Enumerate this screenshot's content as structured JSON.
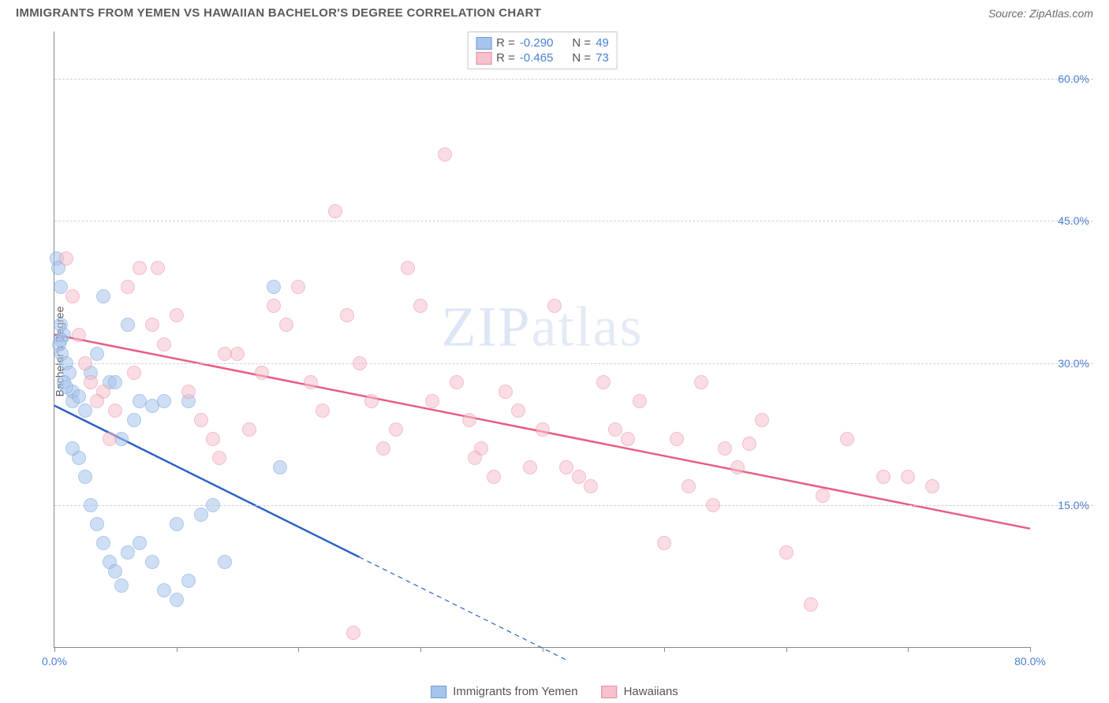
{
  "header": {
    "title": "IMMIGRANTS FROM YEMEN VS HAWAIIAN BACHELOR'S DEGREE CORRELATION CHART",
    "source": "Source: ZipAtlas.com"
  },
  "watermark": {
    "part1": "ZIP",
    "part2": "atlas"
  },
  "chart": {
    "type": "scatter",
    "ylabel": "Bachelor's Degree",
    "xlim": [
      0,
      80
    ],
    "ylim": [
      0,
      65
    ],
    "xticks": [
      0,
      10,
      20,
      30,
      40,
      50,
      60,
      70,
      80
    ],
    "xtick_labels": {
      "0": "0.0%",
      "80": "80.0%"
    },
    "yticks": [
      15,
      30,
      45,
      60
    ],
    "ytick_labels": {
      "15": "15.0%",
      "30": "30.0%",
      "45": "45.0%",
      "60": "60.0%"
    },
    "grid_color": "#d8d8d8",
    "axis_color": "#888888",
    "marker_radius": 9,
    "marker_opacity": 0.55,
    "series": [
      {
        "name": "Immigrants from Yemen",
        "color_fill": "#a7c4ec",
        "color_stroke": "#6f9cd8",
        "trend_color": "#2c62c8",
        "trend_width": 2.5,
        "R": "-0.290",
        "N": "49",
        "trend": {
          "x1": 0,
          "y1": 25.5,
          "x2": 25,
          "y2": 9.5,
          "dash_to_x": 42
        },
        "points": [
          [
            0.2,
            41
          ],
          [
            0.3,
            40
          ],
          [
            0.5,
            38
          ],
          [
            0.5,
            34
          ],
          [
            0.8,
            33
          ],
          [
            0.5,
            32.5
          ],
          [
            0.4,
            32
          ],
          [
            0.6,
            31
          ],
          [
            1.0,
            30
          ],
          [
            1.2,
            29
          ],
          [
            0.8,
            28
          ],
          [
            1.5,
            27
          ],
          [
            1.0,
            27.5
          ],
          [
            1.5,
            26
          ],
          [
            2.0,
            26.5
          ],
          [
            2.5,
            25
          ],
          [
            3.0,
            29
          ],
          [
            3.5,
            31
          ],
          [
            4.0,
            37
          ],
          [
            4.5,
            28
          ],
          [
            5.0,
            28
          ],
          [
            5.5,
            22
          ],
          [
            6.0,
            34
          ],
          [
            6.5,
            24
          ],
          [
            7.0,
            26
          ],
          [
            8.0,
            25.5
          ],
          [
            9.0,
            26
          ],
          [
            10.0,
            13
          ],
          [
            11.0,
            26
          ],
          [
            12.0,
            14
          ],
          [
            2.0,
            20
          ],
          [
            2.5,
            18
          ],
          [
            3.0,
            15
          ],
          [
            3.5,
            13
          ],
          [
            4.0,
            11
          ],
          [
            4.5,
            9
          ],
          [
            5.0,
            8
          ],
          [
            5.5,
            6.5
          ],
          [
            6.0,
            10
          ],
          [
            7.0,
            11
          ],
          [
            8.0,
            9
          ],
          [
            9.0,
            6
          ],
          [
            10.0,
            5
          ],
          [
            11.0,
            7
          ],
          [
            13.0,
            15
          ],
          [
            14.0,
            9
          ],
          [
            18.0,
            38
          ],
          [
            18.5,
            19
          ],
          [
            1.5,
            21
          ]
        ]
      },
      {
        "name": "Hawaiians",
        "color_fill": "#f7c1cd",
        "color_stroke": "#e88ba1",
        "trend_color": "#e85d84",
        "trend_width": 2.5,
        "R": "-0.465",
        "N": "73",
        "trend": {
          "x1": 0,
          "y1": 33,
          "x2": 80,
          "y2": 12.5
        },
        "points": [
          [
            1,
            41
          ],
          [
            1.5,
            37
          ],
          [
            2,
            33
          ],
          [
            2.5,
            30
          ],
          [
            3,
            28
          ],
          [
            4,
            27
          ],
          [
            5,
            25
          ],
          [
            6,
            38
          ],
          [
            7,
            40
          ],
          [
            8,
            34
          ],
          [
            9,
            32
          ],
          [
            10,
            35
          ],
          [
            11,
            27
          ],
          [
            12,
            24
          ],
          [
            13,
            22
          ],
          [
            14,
            31
          ],
          [
            15,
            31
          ],
          [
            16,
            23
          ],
          [
            17,
            29
          ],
          [
            18,
            36
          ],
          [
            19,
            34
          ],
          [
            20,
            38
          ],
          [
            21,
            28
          ],
          [
            22,
            25
          ],
          [
            23,
            46
          ],
          [
            24,
            35
          ],
          [
            24.5,
            1.5
          ],
          [
            25,
            30
          ],
          [
            26,
            26
          ],
          [
            27,
            21
          ],
          [
            28,
            23
          ],
          [
            29,
            40
          ],
          [
            30,
            36
          ],
          [
            31,
            26
          ],
          [
            32,
            52
          ],
          [
            33,
            28
          ],
          [
            34,
            24
          ],
          [
            35,
            21
          ],
          [
            36,
            18
          ],
          [
            37,
            27
          ],
          [
            38,
            25
          ],
          [
            39,
            19
          ],
          [
            40,
            23
          ],
          [
            41,
            36
          ],
          [
            42,
            19
          ],
          [
            43,
            18
          ],
          [
            44,
            17
          ],
          [
            45,
            28
          ],
          [
            46,
            23
          ],
          [
            47,
            22
          ],
          [
            48,
            26
          ],
          [
            50,
            11
          ],
          [
            51,
            22
          ],
          [
            52,
            17
          ],
          [
            53,
            28
          ],
          [
            54,
            15
          ],
          [
            55,
            21
          ],
          [
            56,
            19
          ],
          [
            57,
            21.5
          ],
          [
            58,
            24
          ],
          [
            60,
            10
          ],
          [
            62,
            4.5
          ],
          [
            63,
            16
          ],
          [
            65,
            22
          ],
          [
            68,
            18
          ],
          [
            70,
            18
          ],
          [
            72,
            17
          ],
          [
            3.5,
            26
          ],
          [
            4.5,
            22
          ],
          [
            6.5,
            29
          ],
          [
            8.5,
            40
          ],
          [
            13.5,
            20
          ],
          [
            34.5,
            20
          ]
        ]
      }
    ],
    "legend_top": {
      "rows": [
        {
          "sw_fill": "#a7c4ec",
          "sw_stroke": "#6f9cd8",
          "r_label": "R =",
          "r_val": "-0.290",
          "n_label": "N =",
          "n_val": "49"
        },
        {
          "sw_fill": "#f7c1cd",
          "sw_stroke": "#e88ba1",
          "r_label": "R =",
          "r_val": "-0.465",
          "n_label": "N =",
          "n_val": "73"
        }
      ]
    },
    "legend_bottom": [
      {
        "sw_fill": "#a7c4ec",
        "sw_stroke": "#6f9cd8",
        "label": "Immigrants from Yemen"
      },
      {
        "sw_fill": "#f7c1cd",
        "sw_stroke": "#e88ba1",
        "label": "Hawaiians"
      }
    ]
  }
}
